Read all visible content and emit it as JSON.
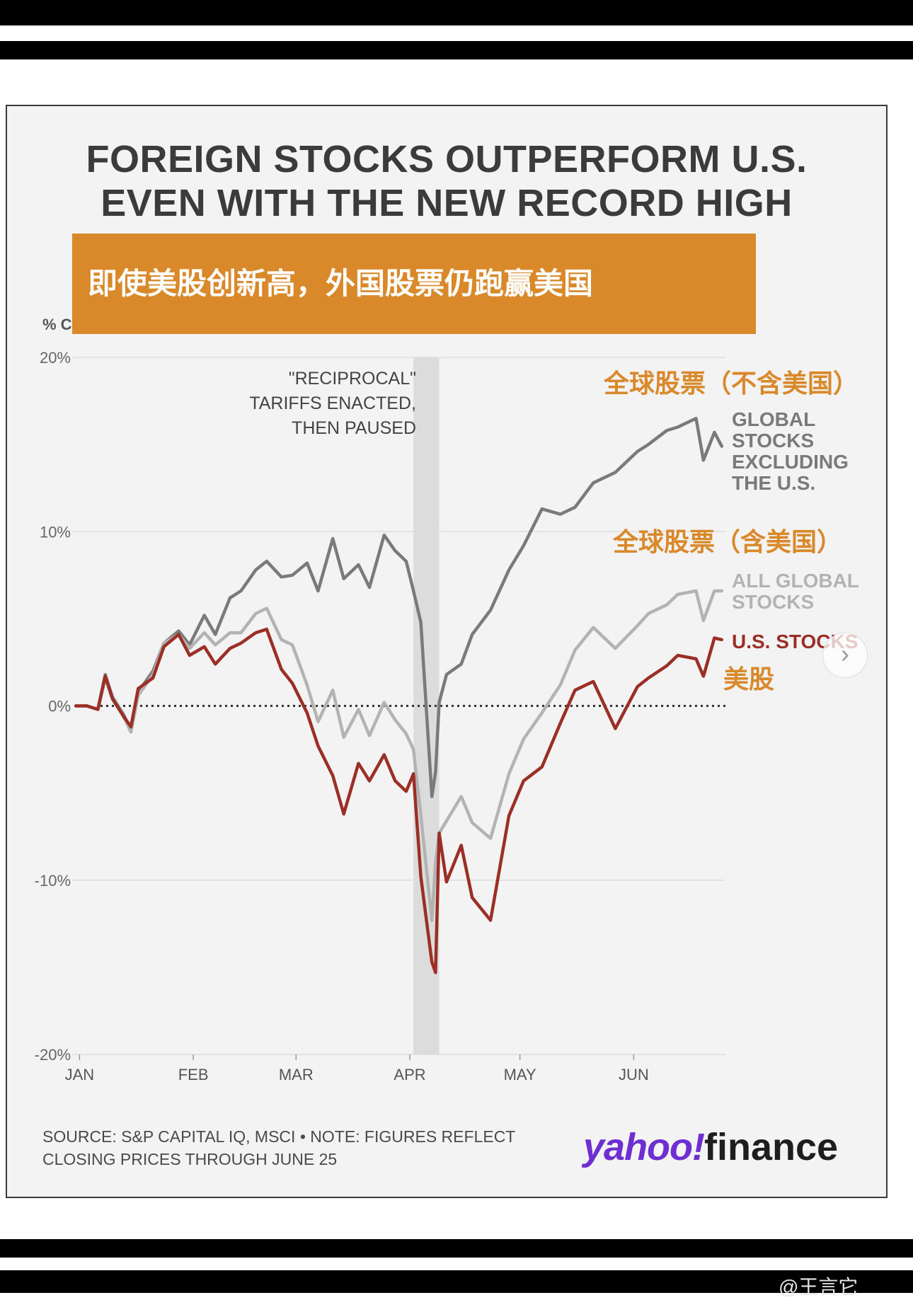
{
  "title_lines": [
    "FOREIGN STOCKS OUTPERFORM U.S.",
    "EVEN WITH THE NEW RECORD HIGH"
  ],
  "banner_text": "即使美股创新高，外国股票仍跑赢美国",
  "unit_label": "% C",
  "annotation_lines": [
    "\"RECIPROCAL\"",
    "TARIFFS ENACTED,",
    "THEN PAUSED"
  ],
  "source_lines": [
    "SOURCE: S&P CAPITAL IQ, MSCI • NOTE: FIGURES REFLECT",
    "CLOSING PRICES THROUGH JUNE 25"
  ],
  "logo": {
    "yahoo": "yahoo!",
    "finance": "finance"
  },
  "watermark": "@王言它",
  "nav_icon": "chevron-right-icon",
  "colors": {
    "global_ex_us": "#7a7a7a",
    "all_global": "#b3b3b3",
    "us": "#9b2f25",
    "accent": "#d9882a",
    "band": "#dcdcdc"
  },
  "series_labels": {
    "global_ex_us": {
      "en": [
        "GLOBAL",
        "STOCKS",
        "EXCLUDING",
        "THE U.S."
      ],
      "cn": "全球股票（不含美国）"
    },
    "all_global": {
      "en": [
        "ALL GLOBAL",
        "STOCKS"
      ],
      "cn": "全球股票（含美国）"
    },
    "us": {
      "en": [
        "U.S. STOCKS"
      ],
      "cn": "美股"
    }
  },
  "chart_data": {
    "type": "line",
    "title": "FOREIGN STOCKS OUTPERFORM U.S. EVEN WITH THE NEW RECORD HIGH",
    "ylabel": "% C",
    "ylim": [
      -20,
      20
    ],
    "yticks": [
      20,
      10,
      0,
      -10,
      -20
    ],
    "ytick_labels": [
      "20%",
      "10%",
      "0%",
      "-10%",
      "-20%"
    ],
    "x_ticks": [
      {
        "date": "2025-01-01",
        "label": "JAN"
      },
      {
        "date": "2025-02-01",
        "label": "FEB"
      },
      {
        "date": "2025-03-01",
        "label": "MAR"
      },
      {
        "date": "2025-04-01",
        "label": "APR"
      },
      {
        "date": "2025-05-01",
        "label": "MAY"
      },
      {
        "date": "2025-06-01",
        "label": "JUN"
      }
    ],
    "x_range": [
      "2024-12-30",
      "2025-06-26"
    ],
    "reference_line": 0,
    "shaded_band": {
      "from": "2025-04-02",
      "to": "2025-04-09",
      "label": "\"RECIPROCAL\" TARIFFS ENACTED, THEN PAUSED"
    },
    "grid": true,
    "series": [
      {
        "key": "global_ex_us",
        "name": "GLOBAL STOCKS EXCLUDING THE U.S.",
        "x": [
          "2024-12-31",
          "2025-01-03",
          "2025-01-06",
          "2025-01-08",
          "2025-01-10",
          "2025-01-13",
          "2025-01-15",
          "2025-01-17",
          "2025-01-21",
          "2025-01-24",
          "2025-01-28",
          "2025-01-31",
          "2025-02-04",
          "2025-02-07",
          "2025-02-11",
          "2025-02-14",
          "2025-02-18",
          "2025-02-21",
          "2025-02-25",
          "2025-02-28",
          "2025-03-04",
          "2025-03-07",
          "2025-03-11",
          "2025-03-14",
          "2025-03-18",
          "2025-03-21",
          "2025-03-25",
          "2025-03-28",
          "2025-03-31",
          "2025-04-02",
          "2025-04-04",
          "2025-04-07",
          "2025-04-08",
          "2025-04-09",
          "2025-04-11",
          "2025-04-15",
          "2025-04-18",
          "2025-04-23",
          "2025-04-28",
          "2025-05-02",
          "2025-05-07",
          "2025-05-12",
          "2025-05-16",
          "2025-05-21",
          "2025-05-27",
          "2025-06-02",
          "2025-06-05",
          "2025-06-10",
          "2025-06-13",
          "2025-06-18",
          "2025-06-20",
          "2025-06-23",
          "2025-06-25"
        ],
        "values": [
          0,
          0,
          -0.2,
          1.8,
          0.5,
          -0.5,
          -1.4,
          0.8,
          2.0,
          3.6,
          4.3,
          3.5,
          5.2,
          4.1,
          6.2,
          6.6,
          7.8,
          8.3,
          7.4,
          7.5,
          8.2,
          6.6,
          9.6,
          7.3,
          8.1,
          6.8,
          9.8,
          8.9,
          8.3,
          6.6,
          4.8,
          -5.2,
          -3.8,
          0.2,
          1.8,
          2.4,
          4.1,
          5.5,
          7.8,
          9.2,
          11.3,
          11.0,
          11.4,
          12.8,
          13.4,
          14.6,
          15.0,
          15.8,
          16.0,
          16.5,
          14.1,
          15.7,
          14.9
        ]
      },
      {
        "key": "all_global",
        "name": "ALL GLOBAL STOCKS",
        "x": [
          "2024-12-31",
          "2025-01-03",
          "2025-01-06",
          "2025-01-08",
          "2025-01-10",
          "2025-01-13",
          "2025-01-15",
          "2025-01-17",
          "2025-01-21",
          "2025-01-24",
          "2025-01-28",
          "2025-01-31",
          "2025-02-04",
          "2025-02-07",
          "2025-02-11",
          "2025-02-14",
          "2025-02-18",
          "2025-02-21",
          "2025-02-25",
          "2025-02-28",
          "2025-03-04",
          "2025-03-07",
          "2025-03-11",
          "2025-03-14",
          "2025-03-18",
          "2025-03-21",
          "2025-03-25",
          "2025-03-28",
          "2025-03-31",
          "2025-04-02",
          "2025-04-04",
          "2025-04-07",
          "2025-04-08",
          "2025-04-09",
          "2025-04-11",
          "2025-04-15",
          "2025-04-18",
          "2025-04-23",
          "2025-04-28",
          "2025-05-02",
          "2025-05-07",
          "2025-05-12",
          "2025-05-16",
          "2025-05-21",
          "2025-05-27",
          "2025-06-02",
          "2025-06-05",
          "2025-06-10",
          "2025-06-13",
          "2025-06-18",
          "2025-06-20",
          "2025-06-23",
          "2025-06-25"
        ],
        "values": [
          0,
          0,
          -0.2,
          1.6,
          0.4,
          -0.6,
          -1.5,
          0.6,
          1.8,
          3.6,
          4.1,
          3.3,
          4.2,
          3.5,
          4.2,
          4.2,
          5.3,
          5.6,
          3.8,
          3.5,
          1.2,
          -0.9,
          0.9,
          -1.8,
          -0.2,
          -1.7,
          0.2,
          -0.8,
          -1.6,
          -2.5,
          -6.3,
          -12.3,
          -9.0,
          -7.3,
          -6.6,
          -5.2,
          -6.7,
          -7.6,
          -3.9,
          -1.9,
          -0.4,
          1.2,
          3.2,
          4.5,
          3.3,
          4.6,
          5.3,
          5.8,
          6.4,
          6.6,
          4.9,
          6.6,
          6.6
        ]
      },
      {
        "key": "us",
        "name": "U.S. STOCKS",
        "x": [
          "2024-12-31",
          "2025-01-03",
          "2025-01-06",
          "2025-01-08",
          "2025-01-10",
          "2025-01-13",
          "2025-01-15",
          "2025-01-17",
          "2025-01-21",
          "2025-01-24",
          "2025-01-28",
          "2025-01-31",
          "2025-02-04",
          "2025-02-07",
          "2025-02-11",
          "2025-02-14",
          "2025-02-18",
          "2025-02-21",
          "2025-02-25",
          "2025-02-28",
          "2025-03-04",
          "2025-03-07",
          "2025-03-11",
          "2025-03-14",
          "2025-03-18",
          "2025-03-21",
          "2025-03-25",
          "2025-03-28",
          "2025-03-31",
          "2025-04-02",
          "2025-04-04",
          "2025-04-07",
          "2025-04-08",
          "2025-04-09",
          "2025-04-11",
          "2025-04-15",
          "2025-04-18",
          "2025-04-23",
          "2025-04-28",
          "2025-05-02",
          "2025-05-07",
          "2025-05-12",
          "2025-05-16",
          "2025-05-21",
          "2025-05-27",
          "2025-06-02",
          "2025-06-05",
          "2025-06-10",
          "2025-06-13",
          "2025-06-18",
          "2025-06-20",
          "2025-06-23",
          "2025-06-25"
        ],
        "values": [
          0,
          0,
          -0.2,
          1.7,
          0.4,
          -0.6,
          -1.2,
          1.0,
          1.6,
          3.4,
          4.1,
          2.9,
          3.4,
          2.4,
          3.3,
          3.6,
          4.2,
          4.4,
          2.1,
          1.3,
          -0.4,
          -2.3,
          -4.0,
          -6.2,
          -3.3,
          -4.3,
          -2.8,
          -4.3,
          -4.9,
          -3.9,
          -9.8,
          -14.7,
          -15.3,
          -7.3,
          -10.1,
          -8.0,
          -11.0,
          -12.3,
          -6.3,
          -4.3,
          -3.5,
          -1.0,
          0.9,
          1.4,
          -1.3,
          1.1,
          1.6,
          2.3,
          2.9,
          2.7,
          1.7,
          3.9,
          3.8
        ]
      }
    ]
  }
}
